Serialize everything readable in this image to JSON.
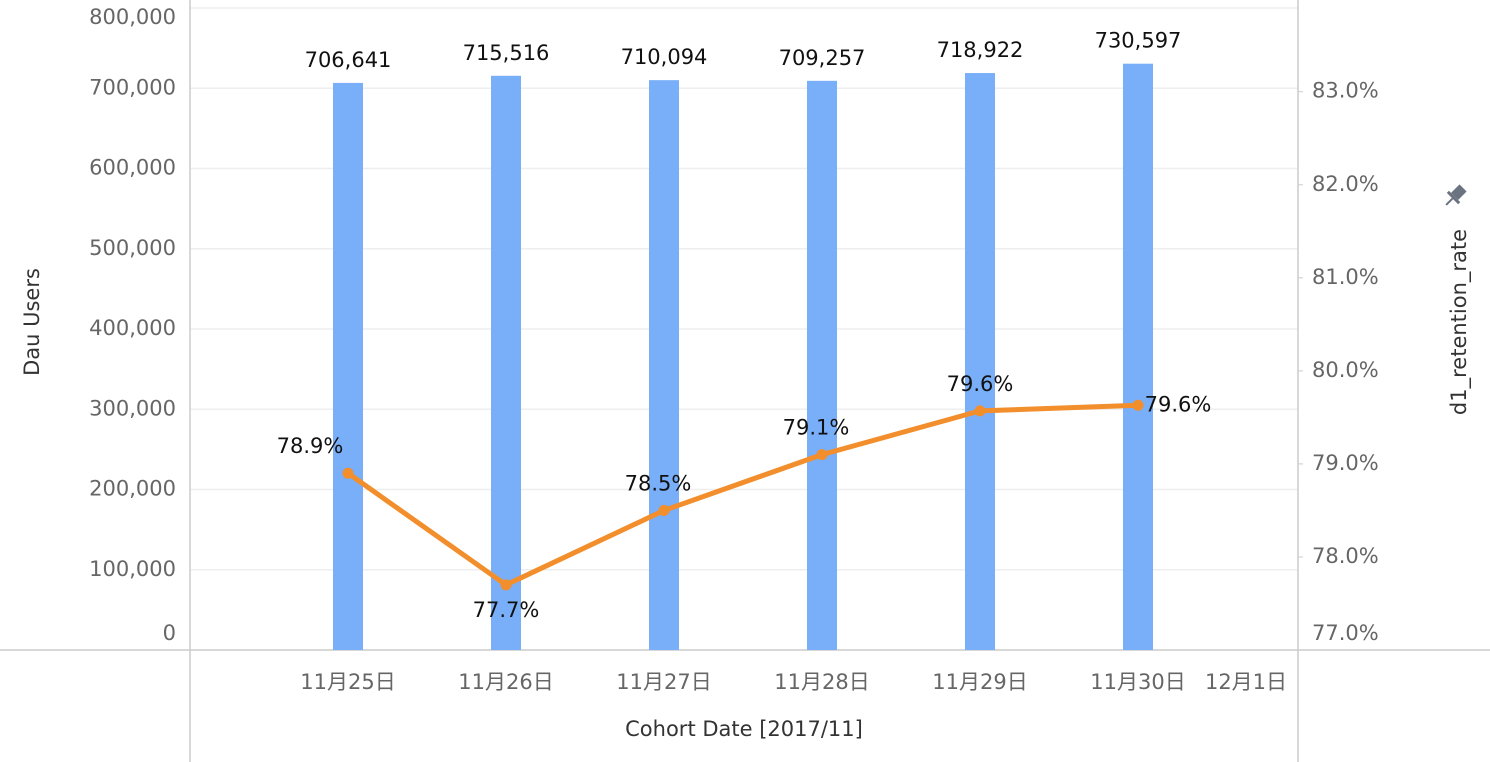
{
  "chart_data": {
    "type": "bar_line",
    "categories": [
      "11月25日",
      "11月26日",
      "11月27日",
      "11月28日",
      "11月29日",
      "11月30日",
      "12月1日"
    ],
    "series": [
      {
        "name": "Dau Users",
        "type": "bar",
        "color": "#79aef8",
        "values": [
          706641,
          715516,
          710094,
          709257,
          718922,
          730597,
          null
        ],
        "value_labels": [
          "706,641",
          "715,516",
          "710,094",
          "709,257",
          "718,922",
          "730,597",
          null
        ]
      },
      {
        "name": "d1_retention_rate",
        "type": "line",
        "axis": "y2",
        "color": "#f28e2b",
        "values": [
          78.9,
          77.7,
          78.5,
          79.1,
          79.57,
          79.63,
          null
        ],
        "value_labels": [
          "78.9%",
          "77.7%",
          "78.5%",
          "79.1%",
          "79.6%",
          "79.6%",
          null
        ]
      }
    ],
    "x_label": "Cohort Date [2017/11]",
    "y_label": "Dau Users",
    "y2_label": "d1_retention_rate",
    "ylim": [
      0,
      800000
    ],
    "yticks": [
      0,
      {
        "value": 100000,
        "label": "100,000"
      },
      {
        "value": 200000,
        "label": "200,000"
      },
      {
        "value": 300000,
        "label": "300,000"
      },
      {
        "value": 400000,
        "label": "400,000"
      },
      {
        "value": 500000,
        "label": "500,000"
      },
      {
        "value": 600000,
        "label": "600,000"
      },
      {
        "value": 700000,
        "label": "700,000"
      },
      {
        "value": 800000,
        "label": "800,000"
      }
    ],
    "y2lim": [
      77,
      83.9
    ],
    "y2ticks": [
      {
        "value": 77,
        "label": "77.0%"
      },
      {
        "value": 78,
        "label": "78.0%"
      },
      {
        "value": 79,
        "label": "79.0%"
      },
      {
        "value": 80,
        "label": "80.0%"
      },
      {
        "value": 81,
        "label": "81.0%"
      },
      {
        "value": 82,
        "label": "82.0%"
      },
      {
        "value": 83,
        "label": "83.0%"
      }
    ],
    "grid": true
  }
}
